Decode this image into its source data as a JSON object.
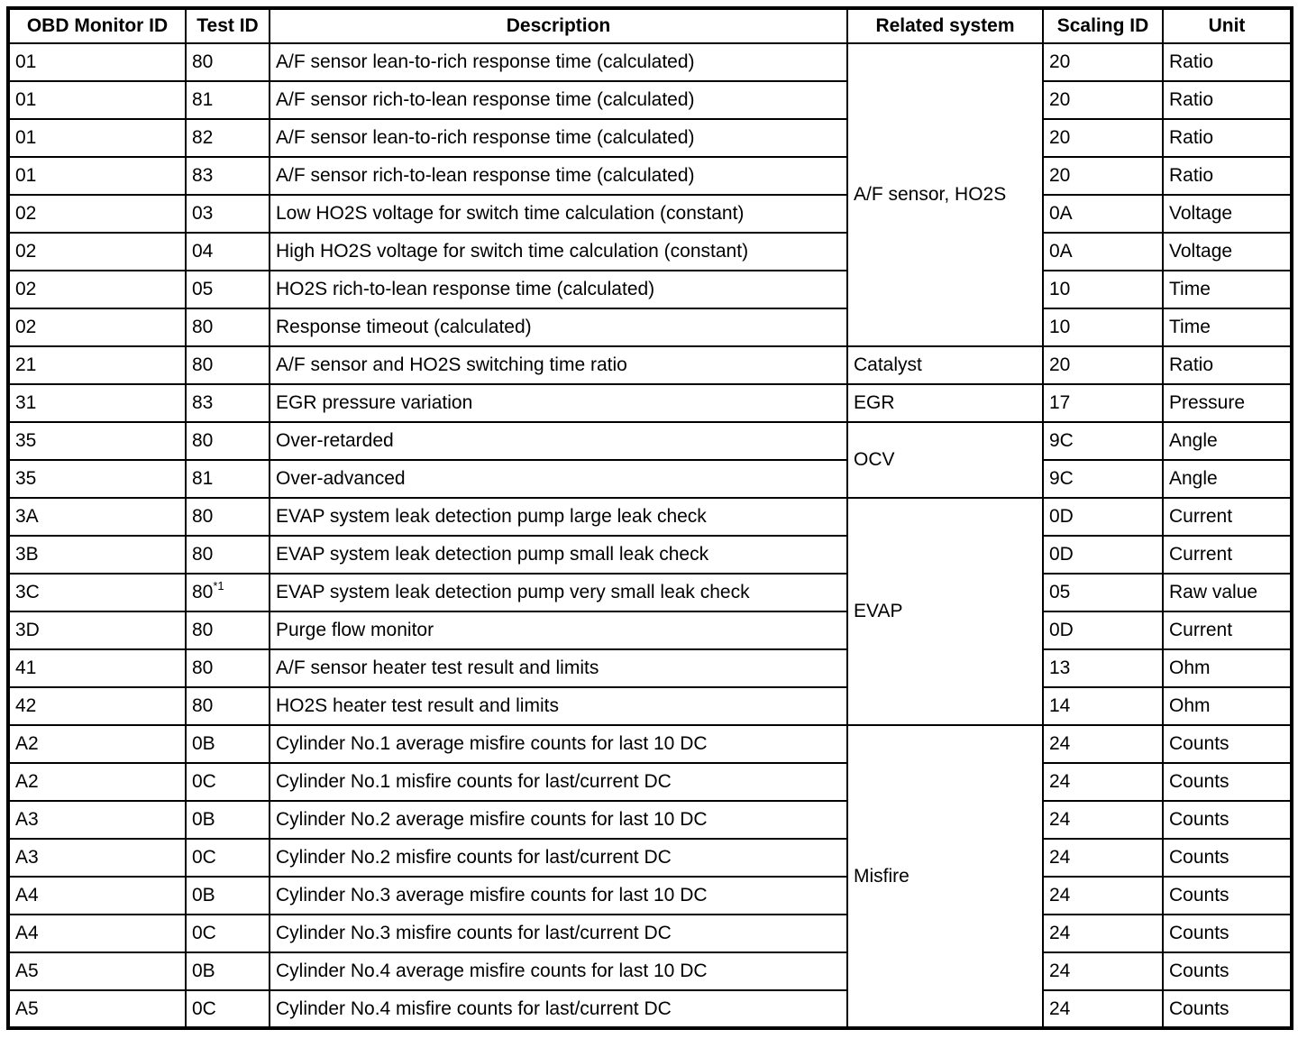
{
  "document": {
    "background_color": "#ffffff",
    "border_color": "#000000",
    "text_color": "#000000"
  },
  "table": {
    "headers": [
      "OBD Monitor ID",
      "Test ID",
      "Description",
      "Related system",
      "Scaling ID",
      "Unit"
    ],
    "related_system_groups": [
      {
        "label": "A/F sensor, HO2S",
        "rowspan": 8
      },
      {
        "label": "Catalyst",
        "rowspan": 1
      },
      {
        "label": "EGR",
        "rowspan": 1
      },
      {
        "label": "OCV",
        "rowspan": 2
      },
      {
        "label": "EVAP",
        "rowspan": 6
      },
      {
        "label": "Misfire",
        "rowspan": 8
      }
    ],
    "rows": [
      {
        "monitor_id": "01",
        "test_id": "80",
        "description": "A/F sensor lean-to-rich response time (calculated)",
        "scaling_id": "20",
        "unit": "Ratio"
      },
      {
        "monitor_id": "01",
        "test_id": "81",
        "description": "A/F sensor rich-to-lean response time (calculated)",
        "scaling_id": "20",
        "unit": "Ratio"
      },
      {
        "monitor_id": "01",
        "test_id": "82",
        "description": "A/F sensor lean-to-rich response time (calculated)",
        "scaling_id": "20",
        "unit": "Ratio"
      },
      {
        "monitor_id": "01",
        "test_id": "83",
        "description": "A/F sensor rich-to-lean response time (calculated)",
        "scaling_id": "20",
        "unit": "Ratio"
      },
      {
        "monitor_id": "02",
        "test_id": "03",
        "description": "Low HO2S voltage for switch time calculation (constant)",
        "scaling_id": "0A",
        "unit": "Voltage"
      },
      {
        "monitor_id": "02",
        "test_id": "04",
        "description": "High HO2S voltage for switch time calculation (constant)",
        "scaling_id": "0A",
        "unit": "Voltage"
      },
      {
        "monitor_id": "02",
        "test_id": "05",
        "description": "HO2S rich-to-lean response time (calculated)",
        "scaling_id": "10",
        "unit": "Time"
      },
      {
        "monitor_id": "02",
        "test_id": "80",
        "description": "Response timeout (calculated)",
        "scaling_id": "10",
        "unit": "Time"
      },
      {
        "monitor_id": "21",
        "test_id": "80",
        "description": "A/F sensor and HO2S switching time ratio",
        "scaling_id": "20",
        "unit": "Ratio"
      },
      {
        "monitor_id": "31",
        "test_id": "83",
        "description": "EGR pressure variation",
        "scaling_id": "17",
        "unit": "Pressure"
      },
      {
        "monitor_id": "35",
        "test_id": "80",
        "description": "Over-retarded",
        "scaling_id": "9C",
        "unit": "Angle"
      },
      {
        "monitor_id": "35",
        "test_id": "81",
        "description": "Over-advanced",
        "scaling_id": "9C",
        "unit": "Angle"
      },
      {
        "monitor_id": "3A",
        "test_id": "80",
        "description": "EVAP system leak detection pump large leak check",
        "scaling_id": "0D",
        "unit": "Current"
      },
      {
        "monitor_id": "3B",
        "test_id": "80",
        "description": "EVAP system leak detection pump small leak check",
        "scaling_id": "0D",
        "unit": "Current"
      },
      {
        "monitor_id": "3C",
        "test_id": "80",
        "test_id_sup": "*1",
        "description": "EVAP system leak detection pump very small leak check",
        "scaling_id": "05",
        "unit": "Raw value"
      },
      {
        "monitor_id": "3D",
        "test_id": "80",
        "description": "Purge flow monitor",
        "scaling_id": "0D",
        "unit": "Current"
      },
      {
        "monitor_id": "41",
        "test_id": "80",
        "description": "A/F sensor heater test result and limits",
        "scaling_id": "13",
        "unit": "Ohm"
      },
      {
        "monitor_id": "42",
        "test_id": "80",
        "description": "HO2S heater test result and limits",
        "scaling_id": "14",
        "unit": "Ohm"
      },
      {
        "monitor_id": "A2",
        "test_id": "0B",
        "description": "Cylinder No.1 average misfire counts for last 10 DC",
        "scaling_id": "24",
        "unit": "Counts"
      },
      {
        "monitor_id": "A2",
        "test_id": "0C",
        "description": "Cylinder No.1 misfire counts for last/current DC",
        "scaling_id": "24",
        "unit": "Counts"
      },
      {
        "monitor_id": "A3",
        "test_id": "0B",
        "description": "Cylinder No.2 average misfire counts for last 10 DC",
        "scaling_id": "24",
        "unit": "Counts"
      },
      {
        "monitor_id": "A3",
        "test_id": "0C",
        "description": "Cylinder No.2 misfire counts for last/current DC",
        "scaling_id": "24",
        "unit": "Counts"
      },
      {
        "monitor_id": "A4",
        "test_id": "0B",
        "description": "Cylinder No.3 average misfire counts for last 10 DC",
        "scaling_id": "24",
        "unit": "Counts"
      },
      {
        "monitor_id": "A4",
        "test_id": "0C",
        "description": "Cylinder No.3 misfire counts for last/current DC",
        "scaling_id": "24",
        "unit": "Counts"
      },
      {
        "monitor_id": "A5",
        "test_id": "0B",
        "description": "Cylinder No.4 average misfire counts for last 10 DC",
        "scaling_id": "24",
        "unit": "Counts"
      },
      {
        "monitor_id": "A5",
        "test_id": "0C",
        "description": "Cylinder No.4 misfire counts for last/current DC",
        "scaling_id": "24",
        "unit": "Counts"
      }
    ]
  }
}
